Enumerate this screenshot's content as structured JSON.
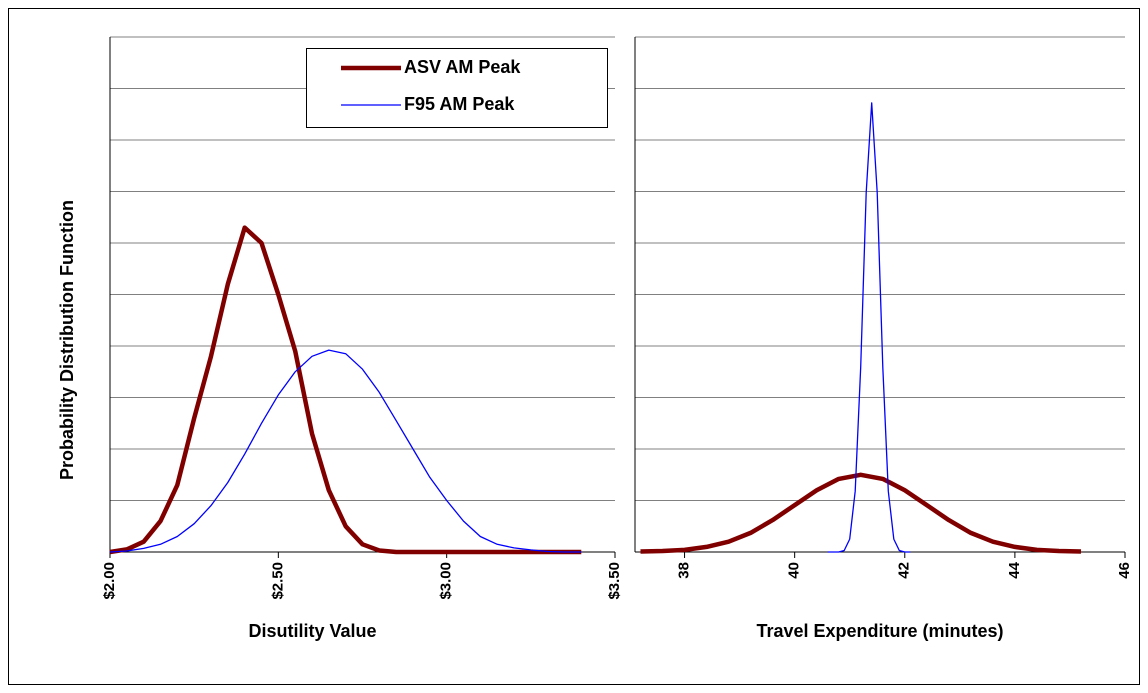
{
  "chart_data": [
    {
      "type": "line",
      "ylabel": "Probability Distribution Function",
      "xlabel": "Disutility Value",
      "xlim": [
        2,
        3.5
      ],
      "xticks": [
        {
          "value": 2,
          "label": "$2.00"
        },
        {
          "value": 2.5,
          "label": "$2.50"
        },
        {
          "value": 3,
          "label": "$3.00"
        },
        {
          "value": 3.5,
          "label": "$3.50"
        }
      ],
      "ylim": [
        0,
        10
      ],
      "yticks": [
        0,
        1,
        2,
        3,
        4,
        5,
        6,
        7,
        8,
        9,
        10
      ],
      "grid": true,
      "legend": "upper right",
      "x": [
        2,
        2.05,
        2.1,
        2.15,
        2.2,
        2.25,
        2.3,
        2.35,
        2.4,
        2.45,
        2.5,
        2.55,
        2.6,
        2.65,
        2.7,
        2.75,
        2.8,
        2.85,
        2.9,
        2.95,
        3,
        3.05,
        3.1,
        3.15,
        3.2,
        3.25,
        3.3,
        3.35,
        3.4
      ],
      "series": [
        {
          "name": "ASV AM Peak",
          "color": "#800000",
          "linewidth": 4.5,
          "values": [
            0,
            0.05,
            0.2,
            0.6,
            1.3,
            2.6,
            3.8,
            5.2,
            6.3,
            6.0,
            5.0,
            3.9,
            2.3,
            1.2,
            0.5,
            0.15,
            0.03,
            0,
            0,
            0,
            0,
            0,
            0,
            0,
            0,
            0,
            0,
            0,
            0
          ]
        },
        {
          "name": "F95 AM Peak",
          "color": "#0000ff",
          "linewidth": 1.3,
          "values": [
            0,
            0.02,
            0.07,
            0.15,
            0.3,
            0.55,
            0.9,
            1.35,
            1.9,
            2.5,
            3.05,
            3.5,
            3.8,
            3.92,
            3.85,
            3.55,
            3.1,
            2.55,
            2.0,
            1.45,
            1.0,
            0.6,
            0.3,
            0.15,
            0.08,
            0.04,
            0.01,
            0,
            0
          ]
        }
      ]
    },
    {
      "type": "line",
      "xlabel": "Travel Expenditure (minutes)",
      "xlim": [
        37.1,
        46
      ],
      "xticks": [
        38,
        40,
        42,
        44,
        46
      ],
      "ylim": [
        0,
        10
      ],
      "yticks": [
        0,
        1,
        2,
        3,
        4,
        5,
        6,
        7,
        8,
        9,
        10
      ],
      "grid": true,
      "series": [
        {
          "color": "#800000",
          "linewidth": 4.5,
          "x": [
            37.2,
            37.6,
            38,
            38.4,
            38.8,
            39.2,
            39.6,
            40,
            40.4,
            40.8,
            41.2,
            41.6,
            42,
            42.4,
            42.8,
            43.2,
            43.6,
            44,
            44.4,
            44.8,
            45.2
          ],
          "values": [
            0.01,
            0.02,
            0.04,
            0.1,
            0.2,
            0.37,
            0.62,
            0.91,
            1.2,
            1.42,
            1.5,
            1.42,
            1.2,
            0.91,
            0.62,
            0.37,
            0.2,
            0.1,
            0.04,
            0.02,
            0.01
          ]
        },
        {
          "color": "#0000ff",
          "linewidth": 1.3,
          "x": [
            40.6,
            40.7,
            40.8,
            40.9,
            41,
            41.1,
            41.2,
            41.3,
            41.4,
            41.5,
            41.6,
            41.7,
            41.8,
            41.9,
            42,
            42.1
          ],
          "values": [
            0,
            0,
            0,
            0.03,
            0.25,
            1.18,
            3.59,
            6.98,
            8.72,
            6.98,
            3.59,
            1.18,
            0.25,
            0.03,
            0,
            0
          ]
        }
      ]
    }
  ]
}
